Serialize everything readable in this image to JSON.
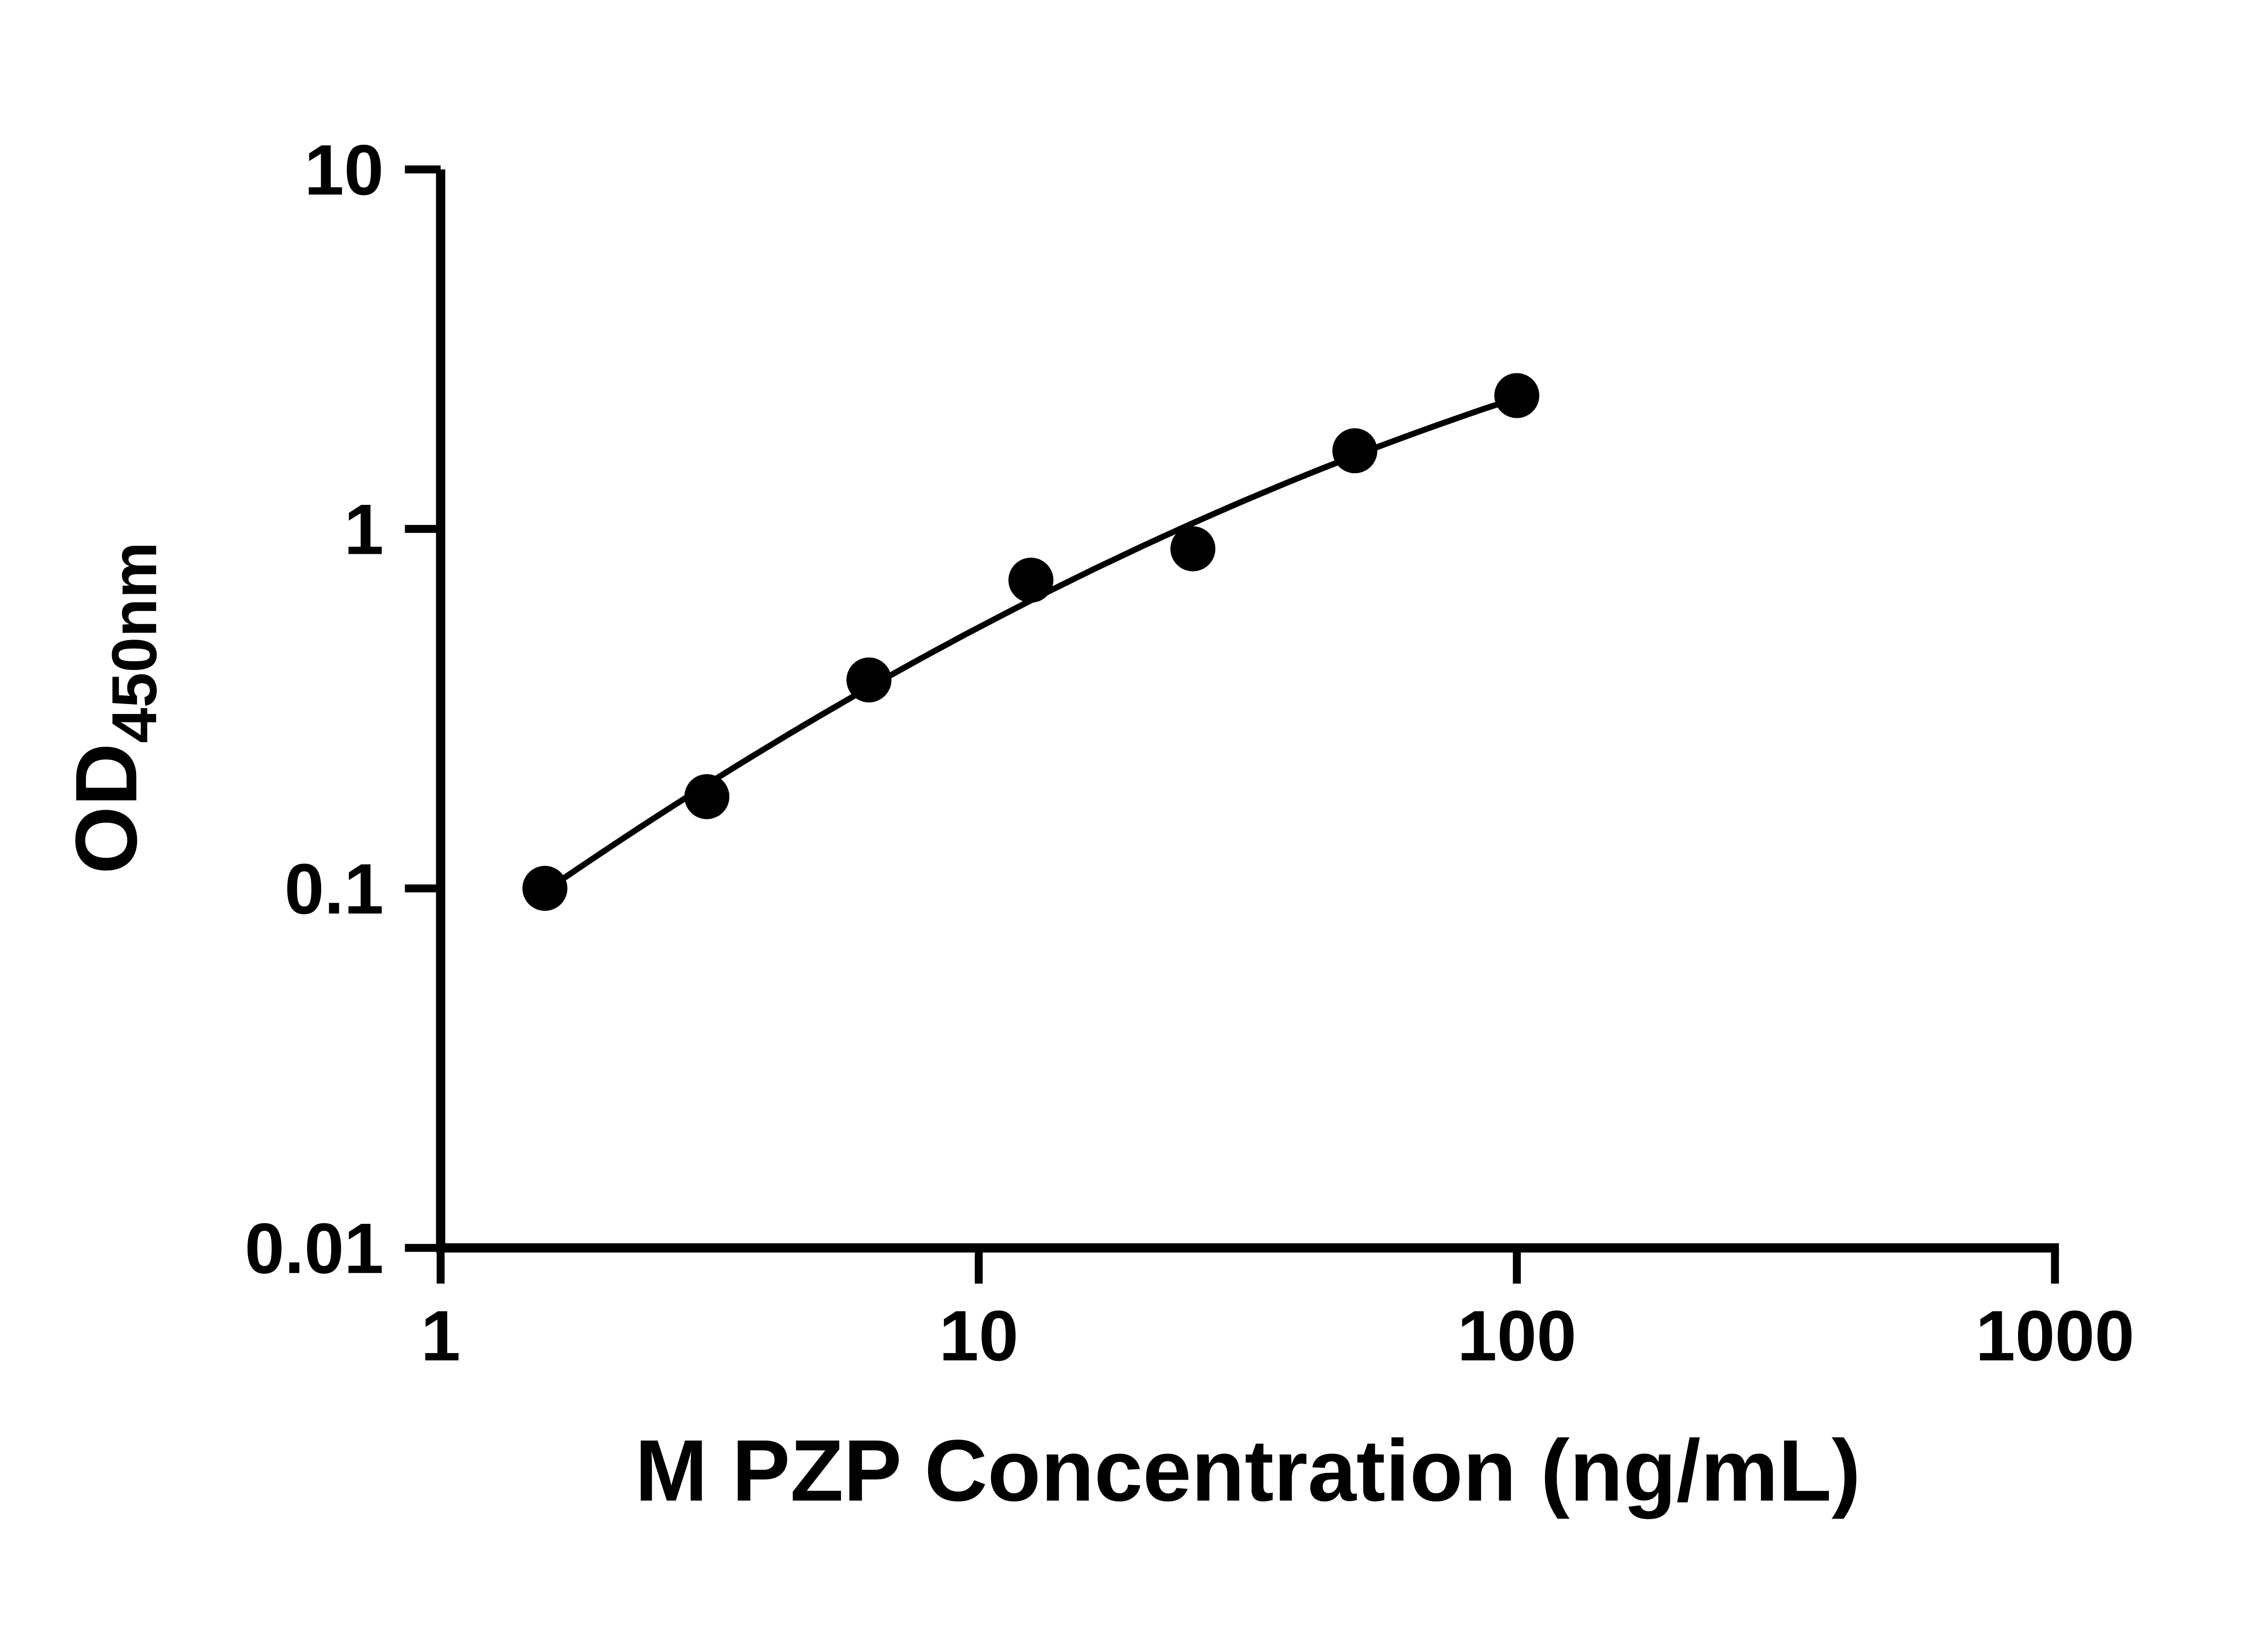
{
  "chart_data": {
    "type": "scatter",
    "title": "",
    "xlabel": "M PZP Concentration (ng/mL)",
    "ylabel": "OD",
    "ylabel_subscript": "450nm",
    "x_scale": "log",
    "y_scale": "log",
    "xlim": [
      1,
      1000
    ],
    "ylim": [
      0.01,
      10
    ],
    "x_ticks": [
      1,
      10,
      100,
      1000
    ],
    "x_tick_labels": [
      "1",
      "10",
      "100",
      "1000"
    ],
    "y_ticks": [
      0.01,
      0.1,
      1,
      10
    ],
    "y_tick_labels": [
      "0.01",
      "0.1",
      "1",
      "10"
    ],
    "grid": false,
    "legend": "none",
    "trendline": "smooth-fit-through-points",
    "marker_color": "#000000",
    "line_color": "#000000",
    "axis_color": "#000000",
    "points": [
      {
        "x": 1.5625,
        "y": 0.1
      },
      {
        "x": 3.125,
        "y": 0.18
      },
      {
        "x": 6.25,
        "y": 0.38
      },
      {
        "x": 12.5,
        "y": 0.72
      },
      {
        "x": 25,
        "y": 0.88
      },
      {
        "x": 50,
        "y": 1.65
      },
      {
        "x": 100,
        "y": 2.35
      }
    ]
  }
}
